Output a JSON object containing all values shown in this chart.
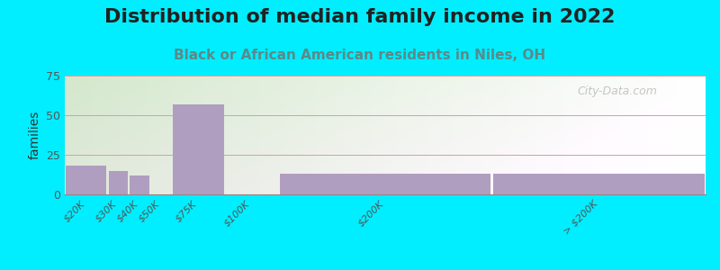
{
  "title": "Distribution of median family income in 2022",
  "subtitle": "Black or African American residents in Niles, OH",
  "bar_edges": [
    0,
    20,
    30,
    40,
    50,
    75,
    100,
    200,
    300
  ],
  "values": [
    18,
    15,
    12,
    0,
    57,
    0,
    13,
    13
  ],
  "tick_positions": [
    10,
    25,
    35,
    45,
    62.5,
    87.5,
    150,
    250
  ],
  "tick_labels": [
    "$20K",
    "$30K",
    "$40K",
    "$50K",
    "$75K",
    "$100K",
    "$200K",
    "> $200K"
  ],
  "bar_color": "#b09ec0",
  "background_outer": "#00eeff",
  "ylabel": "families",
  "ylim": [
    0,
    75
  ],
  "yticks": [
    0,
    25,
    50,
    75
  ],
  "xlim": [
    0,
    300
  ],
  "title_fontsize": 16,
  "subtitle_fontsize": 11,
  "watermark": "City-Data.com"
}
